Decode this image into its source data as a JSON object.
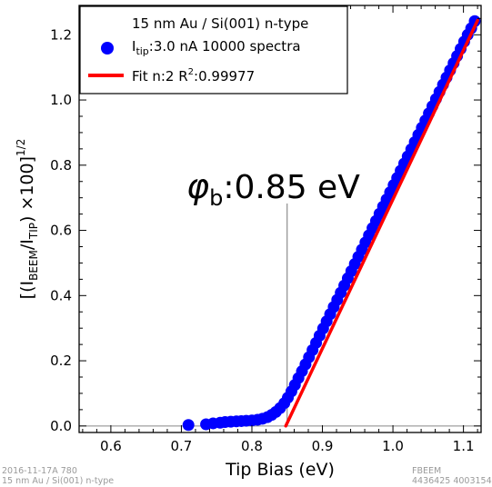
{
  "chart_data": {
    "type": "scatter",
    "xlabel": "Tip Bias (eV)",
    "ylabel_parts": {
      "open": "[(I",
      "sub1": "BEEM",
      "slash": "/I",
      "sub2": "TIP",
      "close": ") ×100]",
      "sup": "1/2"
    },
    "xlim": [
      0.555,
      1.125
    ],
    "ylim": [
      -0.02,
      1.29
    ],
    "xticks": [
      "0.6",
      "0.7",
      "0.8",
      "0.9",
      "1.0",
      "1.1"
    ],
    "yticks": [
      "0.0",
      "0.2",
      "0.4",
      "0.6",
      "0.8",
      "1.0",
      "1.2"
    ],
    "legend": {
      "title": "15 nm Au / Si(001) n-type",
      "series_label_parts": {
        "main": "I",
        "sub": "tip",
        "rest": ":3.0 nA 10000 spectra"
      },
      "fit_label_parts": {
        "main": "Fit n:2 R",
        "sup": "2",
        "rest": ":0.99977"
      }
    },
    "series": [
      {
        "kind": "points",
        "color": "#0000ff",
        "x": [
          0.71,
          0.735,
          0.745,
          0.755,
          0.762,
          0.77,
          0.778,
          0.785,
          0.792,
          0.8,
          0.808,
          0.815,
          0.822,
          0.828,
          0.834,
          0.84,
          0.846,
          0.851,
          0.856,
          0.861,
          0.866,
          0.871,
          0.876,
          0.881,
          0.886,
          0.891,
          0.896,
          0.901,
          0.906,
          0.911,
          0.916,
          0.921,
          0.926,
          0.931,
          0.936,
          0.941,
          0.946,
          0.951,
          0.956,
          0.961,
          0.966,
          0.971,
          0.976,
          0.981,
          0.986,
          0.991,
          0.996,
          1.001,
          1.006,
          1.011,
          1.016,
          1.021,
          1.026,
          1.031,
          1.036,
          1.041,
          1.046,
          1.051,
          1.056,
          1.061,
          1.066,
          1.071,
          1.076,
          1.081,
          1.086,
          1.091,
          1.096,
          1.101,
          1.106,
          1.111,
          1.116
        ],
        "y": [
          0.003,
          0.005,
          0.008,
          0.01,
          0.012,
          0.013,
          0.014,
          0.015,
          0.016,
          0.017,
          0.019,
          0.022,
          0.027,
          0.034,
          0.043,
          0.055,
          0.07,
          0.087,
          0.106,
          0.126,
          0.147,
          0.168,
          0.189,
          0.211,
          0.233,
          0.255,
          0.277,
          0.299,
          0.321,
          0.343,
          0.365,
          0.387,
          0.409,
          0.431,
          0.453,
          0.475,
          0.497,
          0.519,
          0.541,
          0.563,
          0.585,
          0.607,
          0.629,
          0.651,
          0.673,
          0.695,
          0.717,
          0.739,
          0.761,
          0.783,
          0.805,
          0.827,
          0.849,
          0.871,
          0.893,
          0.915,
          0.937,
          0.959,
          0.981,
          1.003,
          1.025,
          1.047,
          1.069,
          1.091,
          1.113,
          1.135,
          1.157,
          1.179,
          1.2,
          1.22,
          1.242
        ]
      },
      {
        "kind": "fit-line",
        "color": "#ff0000",
        "x": [
          0.848,
          1.12
        ],
        "y": [
          0.0,
          1.244
        ]
      }
    ],
    "annotation": {
      "phi_symbol": "φ",
      "phi_sub": "b",
      "text": ":0.85 eV",
      "x": 0.85
    },
    "grid": false,
    "legend_position": "top-left"
  },
  "footer": {
    "left_line1": "2016-11-17A 780",
    "left_line2": "15 nm Au / Si(001) n-type",
    "right_line1": "FBEEM",
    "right_line2": "4436425 4003154"
  }
}
